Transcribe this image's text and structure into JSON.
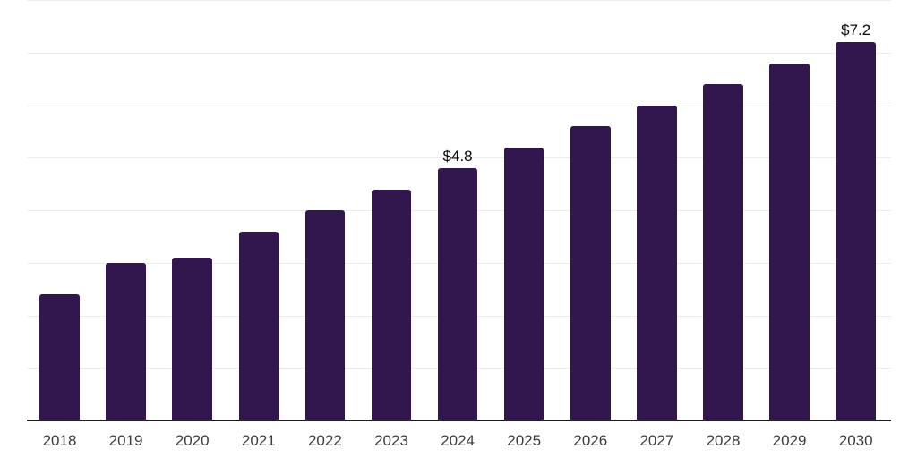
{
  "chart_data": {
    "type": "bar",
    "title": "",
    "xlabel": "",
    "ylabel": "",
    "categories": [
      "2018",
      "2019",
      "2020",
      "2021",
      "2022",
      "2023",
      "2024",
      "2025",
      "2026",
      "2027",
      "2028",
      "2029",
      "2030"
    ],
    "values": [
      2.4,
      3.0,
      3.1,
      3.6,
      4.0,
      4.4,
      4.8,
      5.2,
      5.6,
      6.0,
      6.4,
      6.8,
      7.2
    ],
    "data_labels": {
      "2024": "$4.8",
      "2030": "$7.2"
    },
    "ylim": [
      0,
      8
    ],
    "gridline_step": 1,
    "grid": "horizontal",
    "legend": "none",
    "bar_color": "#32164E",
    "axis_line_color": "#1f1f1f",
    "gridline_color": "#ededed",
    "tick_label_color": "#3c3c3c",
    "value_label_color": "#0a0a0a",
    "background_color": "#ffffff"
  }
}
